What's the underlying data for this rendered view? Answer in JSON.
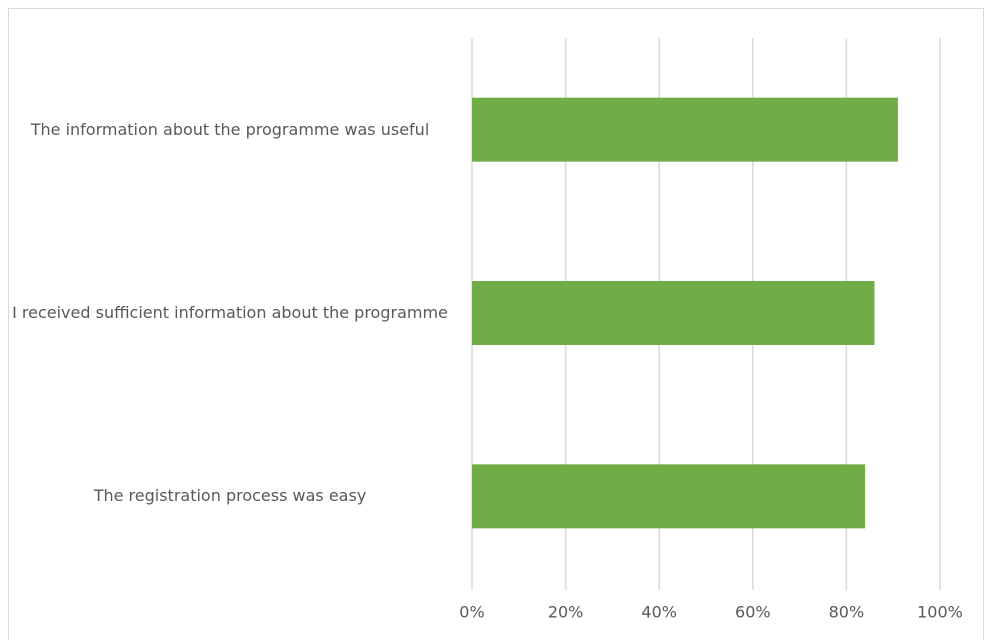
{
  "chart_data": {
    "type": "bar",
    "orientation": "horizontal",
    "categories": [
      "The information about the programme was useful",
      "I received sufficient information about the programme",
      "The registration process was easy"
    ],
    "values": [
      91,
      86,
      84
    ],
    "color": "#70ad47",
    "xlim": [
      0,
      100
    ],
    "xticks": [
      {
        "value": 0,
        "label": "0%"
      },
      {
        "value": 20,
        "label": "20%"
      },
      {
        "value": 40,
        "label": "40%"
      },
      {
        "value": 60,
        "label": "60%"
      },
      {
        "value": 80,
        "label": "80%"
      },
      {
        "value": 100,
        "label": "100%"
      }
    ],
    "grid": true
  }
}
